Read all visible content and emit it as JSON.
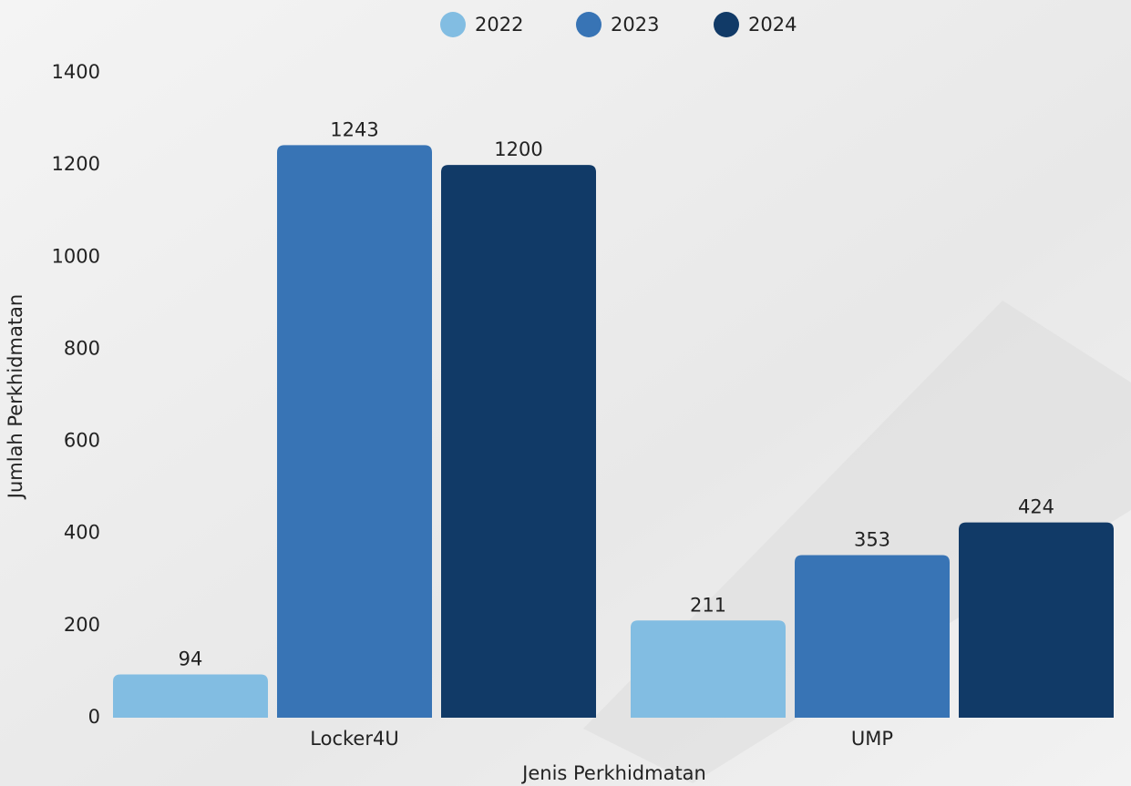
{
  "chart_data": {
    "type": "bar",
    "x_label": "Jenis Perkhidmatan",
    "y_label": "Jumlah Perkhidmatan",
    "categories": [
      "Locker4U",
      "UMP"
    ],
    "series": [
      {
        "name": "2022",
        "color": "#82bde2",
        "values": [
          94,
          211
        ]
      },
      {
        "name": "2023",
        "color": "#3874b5",
        "values": [
          1243,
          353
        ]
      },
      {
        "name": "2024",
        "color": "#113a67",
        "values": [
          1200,
          424
        ]
      }
    ],
    "ylim": [
      0,
      1400
    ],
    "yticks": [
      0,
      200,
      400,
      600,
      800,
      1000,
      1200,
      1400
    ],
    "legend": "top"
  }
}
